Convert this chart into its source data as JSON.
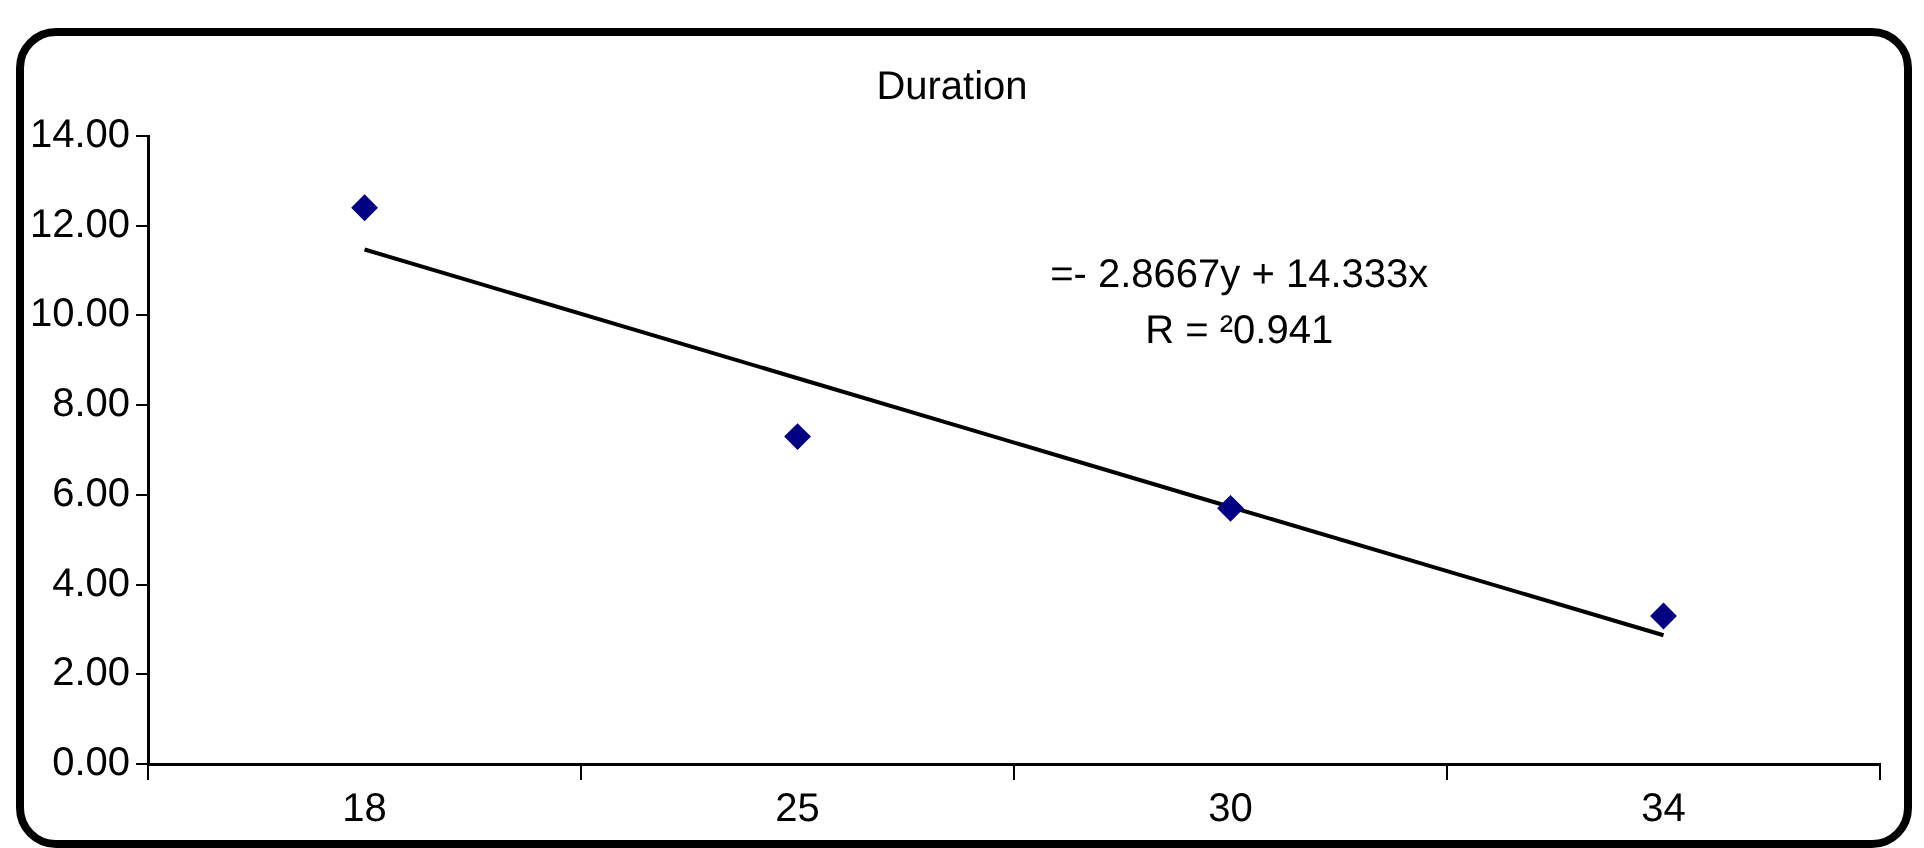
{
  "chart_data": {
    "type": "scatter",
    "title": "Duration",
    "categories": [
      "18",
      "25",
      "30",
      "34"
    ],
    "series": [
      {
        "color": "#000080",
        "marker": "diamond",
        "values": [
          12.4,
          7.3,
          5.7,
          3.3
        ]
      },
      {
        "type": "line",
        "color": "#000000",
        "marker": "none",
        "values": [
          11.47,
          8.6,
          5.73,
          2.87
        ]
      }
    ],
    "ylim": [
      0,
      14
    ],
    "yticks": [
      {
        "value": 0,
        "label": "0.00"
      },
      {
        "value": 2,
        "label": "2.00"
      },
      {
        "value": 4,
        "label": "4.00"
      },
      {
        "value": 6,
        "label": "6.00"
      },
      {
        "value": 8,
        "label": "8.00"
      },
      {
        "value": 10,
        "label": "10.00"
      },
      {
        "value": 12,
        "label": "12.00"
      },
      {
        "value": 14,
        "label": "14.00"
      }
    ],
    "grid": false,
    "legend": false,
    "annotations": [
      "=- 2.8667y + 14.333x",
      "R = ²0.941"
    ]
  }
}
